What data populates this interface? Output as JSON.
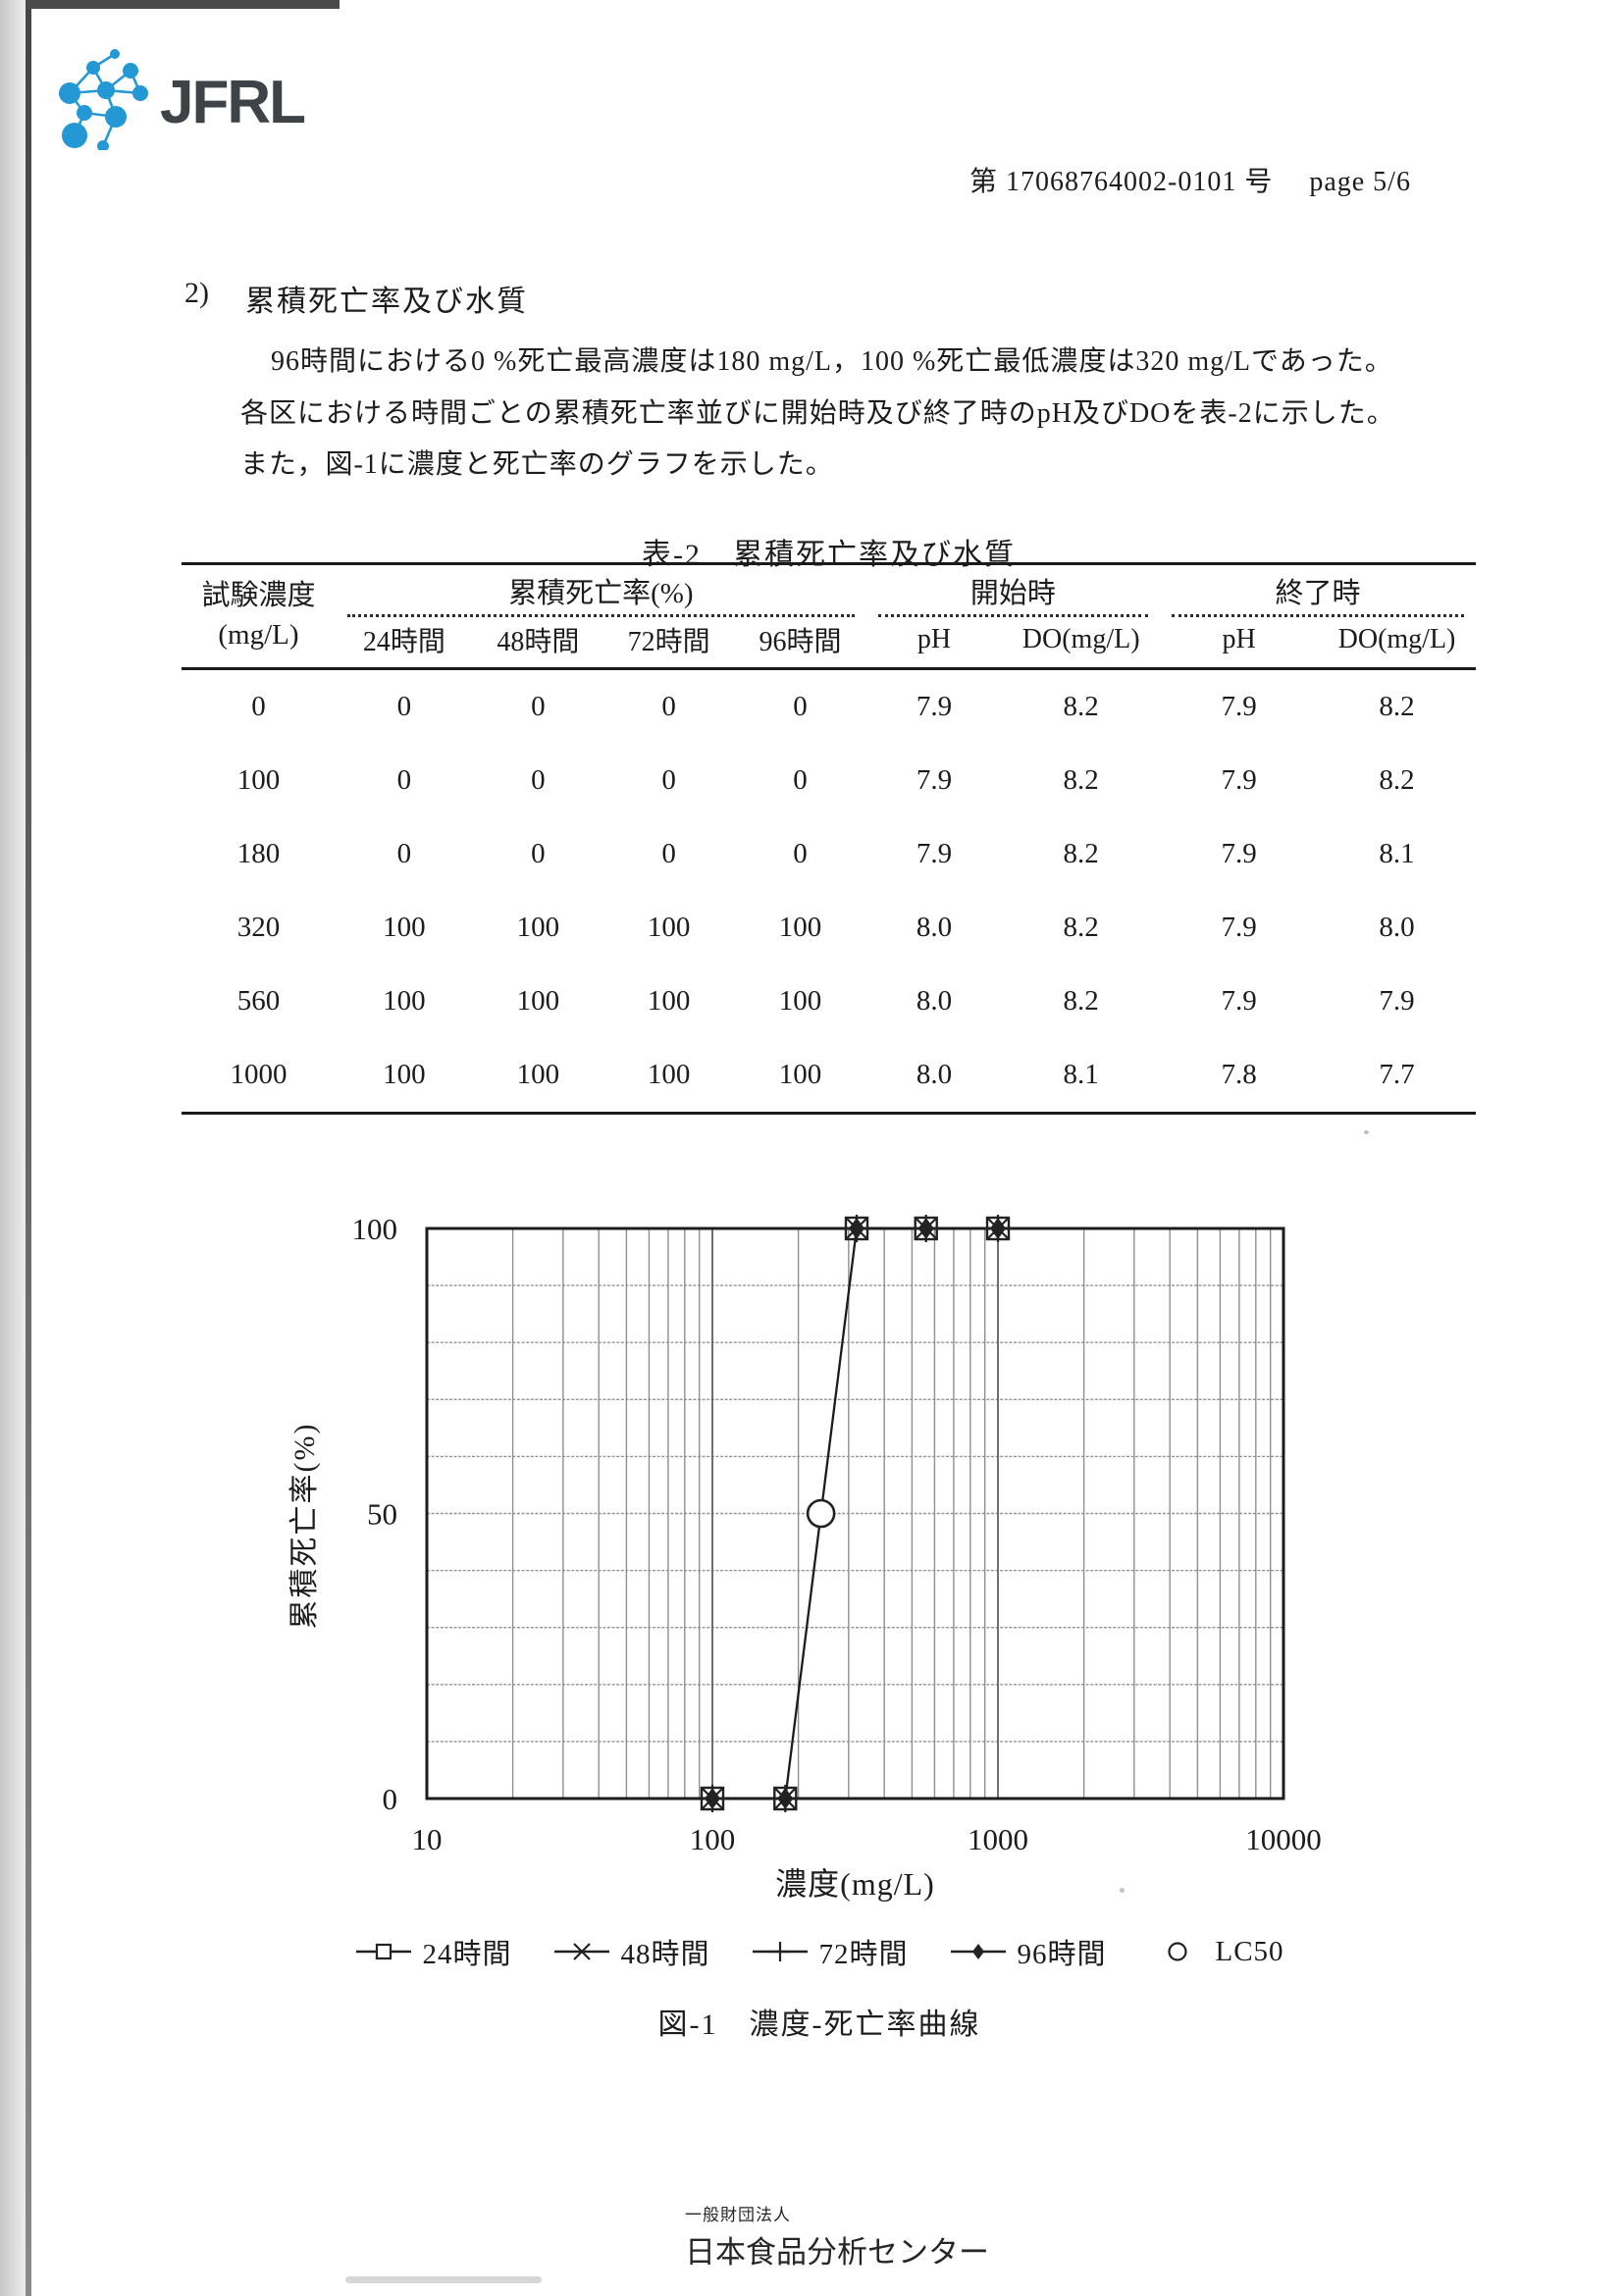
{
  "header": {
    "logo_text": "JFRL",
    "doc_number": "第 17068764002-0101 号　 page 5/6"
  },
  "section": {
    "number": "2)",
    "title": "累積死亡率及び水質",
    "lines": [
      "96時間における0 %死亡最高濃度は180 mg/L，100 %死亡最低濃度は320 mg/Lであった。",
      "各区における時間ごとの累積死亡率並びに開始時及び終了時のpH及びDOを表-2に示した。",
      "また，図-1に濃度と死亡率のグラフを示した。"
    ]
  },
  "table": {
    "title": "表-2　累積死亡率及び水質",
    "headers": {
      "concentration_l1": "試験濃度",
      "concentration_l2": "(mg/L)",
      "group_mortality": "累積死亡率(%)",
      "group_start": "開始時",
      "group_end": "終了時",
      "sub": [
        "24時間",
        "48時間",
        "72時間",
        "96時間",
        "pH",
        "DO(mg/L)",
        "pH",
        "DO(mg/L)"
      ]
    },
    "rows": [
      [
        "0",
        "0",
        "0",
        "0",
        "0",
        "7.9",
        "8.2",
        "7.9",
        "8.2"
      ],
      [
        "100",
        "0",
        "0",
        "0",
        "0",
        "7.9",
        "8.2",
        "7.9",
        "8.2"
      ],
      [
        "180",
        "0",
        "0",
        "0",
        "0",
        "7.9",
        "8.2",
        "7.9",
        "8.1"
      ],
      [
        "320",
        "100",
        "100",
        "100",
        "100",
        "8.0",
        "8.2",
        "7.9",
        "8.0"
      ],
      [
        "560",
        "100",
        "100",
        "100",
        "100",
        "8.0",
        "8.2",
        "7.9",
        "7.9"
      ],
      [
        "1000",
        "100",
        "100",
        "100",
        "100",
        "8.0",
        "8.1",
        "7.8",
        "7.7"
      ]
    ]
  },
  "chart_data": {
    "type": "line",
    "x_scale": "log",
    "xlabel": "濃度(mg/L)",
    "ylabel": "累積死亡率(%)",
    "xlim": [
      10,
      10000
    ],
    "ylim": [
      0,
      100
    ],
    "x_ticks": [
      10,
      100,
      1000,
      10000
    ],
    "y_ticks": [
      0,
      50,
      100
    ],
    "y_minor_grid_step": 10,
    "x_minor_grid": "log sub-decades 2-9",
    "x": [
      100,
      180,
      320,
      560,
      1000
    ],
    "series": [
      {
        "name": "24時間",
        "marker": "square",
        "values": [
          0,
          0,
          100,
          100,
          100
        ]
      },
      {
        "name": "48時間",
        "marker": "x",
        "values": [
          0,
          0,
          100,
          100,
          100
        ]
      },
      {
        "name": "72時間",
        "marker": "plus",
        "values": [
          0,
          0,
          100,
          100,
          100
        ]
      },
      {
        "name": "96時間",
        "marker": "diamond",
        "values": [
          0,
          0,
          100,
          100,
          100
        ]
      }
    ],
    "lc50": {
      "label": "LC50",
      "marker": "circle",
      "x": 240,
      "y": 50
    },
    "legend_position": "bottom",
    "caption": "図-1　濃度-死亡率曲線"
  },
  "footer": {
    "org_type": "一般財団法人",
    "org_name": "日本食品分析センター"
  },
  "colors": {
    "logo_blue": "#2398d5",
    "logo_gray": "#3d4347",
    "ink": "#1c1c1c",
    "grid_gray": "#949494"
  }
}
